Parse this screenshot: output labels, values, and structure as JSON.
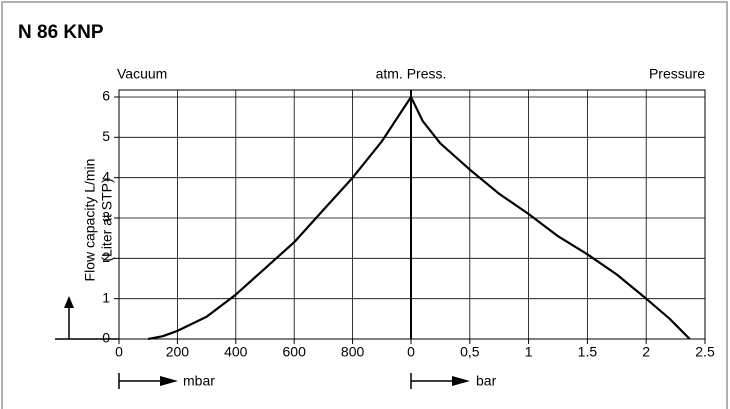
{
  "chart_data": {
    "type": "line",
    "title": "N 86 KNP",
    "ylabel": "Flow capacity L/min",
    "ylabel_note": "(Liter at STP)",
    "annotations": [
      "Vacuum",
      "atm. Press.",
      "Pressure"
    ],
    "xlabel": "mbar",
    "x2label": "bar",
    "xlim": [
      0,
      1000
    ],
    "xticks": [
      0,
      200,
      400,
      600,
      800
    ],
    "x2lim": [
      0,
      2.5
    ],
    "x2ticks": [
      0,
      {
        "value": 0.5,
        "label": "0,5"
      },
      1,
      1.5,
      2,
      2.5
    ],
    "ylim": [
      0,
      6
    ],
    "yticks": [
      0,
      1,
      2,
      3,
      4,
      5,
      6
    ],
    "grid": true,
    "series": [
      {
        "color": "#000000",
        "axis": "x",
        "x": [
          100,
          150,
          200,
          300,
          400,
          500,
          600,
          700,
          800,
          900,
          1000
        ],
        "values": [
          0,
          0.07,
          0.2,
          0.55,
          1.1,
          1.75,
          2.4,
          3.2,
          4.0,
          4.9,
          6
        ]
      },
      {
        "color": "#000000",
        "axis": "x2",
        "x": [
          0,
          0.1,
          0.25,
          0.5,
          0.75,
          1,
          1.25,
          1.5,
          1.75,
          2,
          2.2,
          2.37
        ],
        "values": [
          6,
          5.4,
          4.85,
          4.2,
          3.6,
          3.1,
          2.55,
          2.1,
          1.6,
          1.0,
          0.5,
          0
        ]
      }
    ]
  }
}
